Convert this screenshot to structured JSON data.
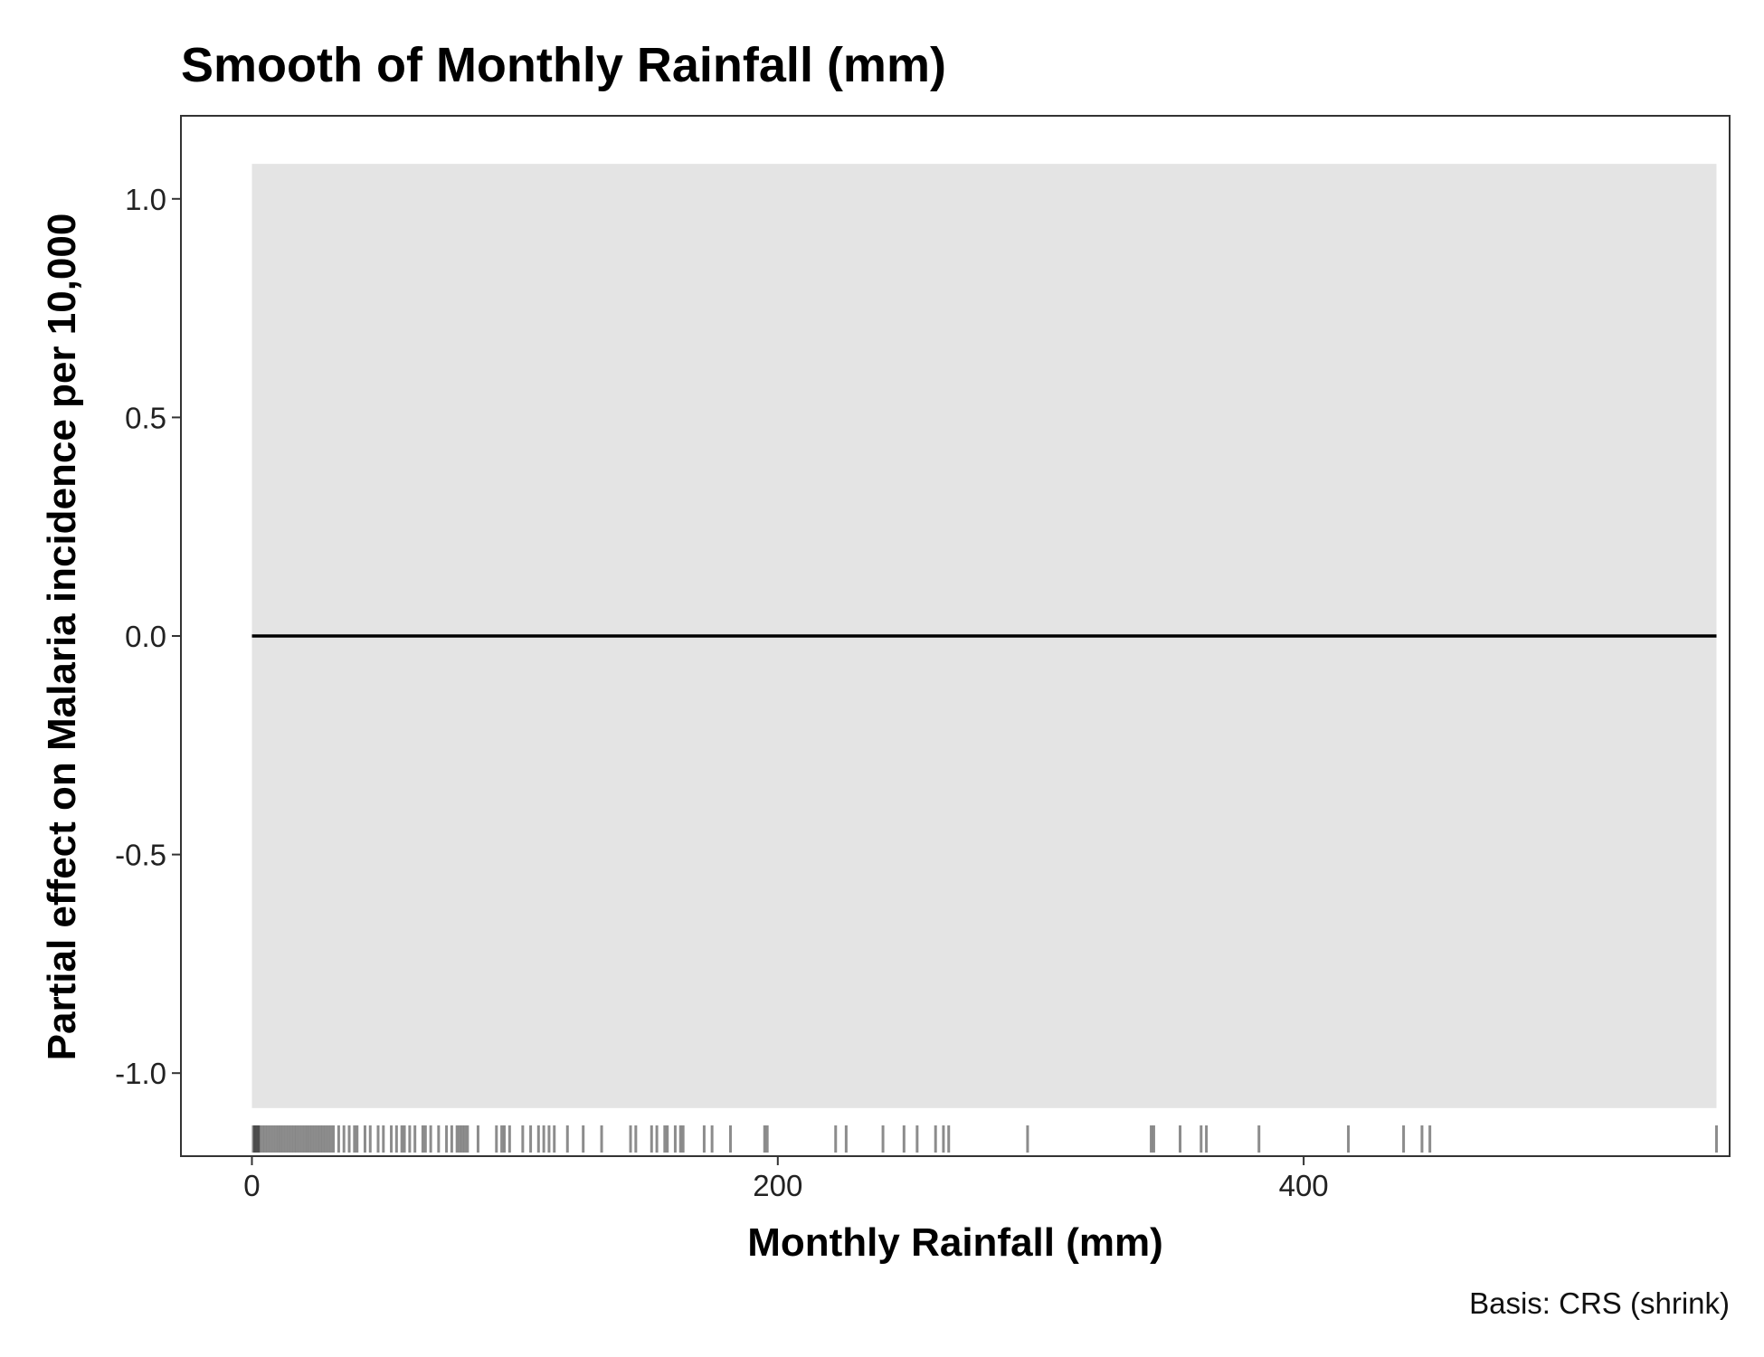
{
  "chart_data": {
    "type": "line",
    "title": "Smooth of Monthly Rainfall (mm)",
    "xlabel": "Monthly Rainfall (mm)",
    "ylabel": "Partial effect on Malaria incidence per 10,000",
    "caption": "Basis: CRS (shrink)",
    "xlim": [
      -27,
      562
    ],
    "ylim": [
      -1.19,
      1.19
    ],
    "x_ticks": [
      0,
      200,
      400
    ],
    "x_tick_labels": [
      "0",
      "200",
      "400"
    ],
    "y_ticks": [
      1.0,
      0.5,
      0.0,
      -0.5,
      -1.0
    ],
    "y_tick_labels": [
      "1.0",
      "0.5",
      "0.0",
      "-0.5",
      "-1.0"
    ],
    "grid": false,
    "series": [
      {
        "x": [
          0,
          557
        ],
        "y": [
          0,
          0
        ]
      }
    ],
    "confidence_band": {
      "x": [
        0,
        557
      ],
      "lower": [
        -1.08,
        -1.08
      ],
      "upper": [
        1.08,
        1.08
      ],
      "color": "#e4e4e4"
    },
    "rug": [
      0.5,
      1,
      1.5,
      2,
      2.5,
      3,
      4,
      5,
      6,
      7,
      8,
      9,
      10,
      11,
      12,
      13,
      14,
      15,
      16,
      17,
      18,
      19,
      20,
      21,
      22,
      23,
      24,
      25,
      26,
      27,
      28,
      29,
      30,
      31,
      33,
      35,
      37,
      39,
      40,
      43,
      45,
      48,
      50,
      53,
      55,
      57,
      58,
      60,
      62,
      65,
      66,
      68,
      71,
      74,
      76,
      78,
      79,
      80,
      81,
      82,
      86,
      93,
      95,
      96,
      98,
      103,
      106,
      109,
      111,
      113,
      115,
      120,
      126,
      133,
      144,
      146,
      152,
      154,
      157,
      158,
      161,
      163,
      164,
      172,
      175,
      182,
      195,
      196,
      222,
      226,
      240,
      248,
      253,
      260,
      263,
      265,
      295,
      342,
      343,
      353,
      361,
      363,
      383,
      417,
      438,
      445,
      448,
      557
    ],
    "colors": {
      "line": "#000000",
      "band": "#e4e4e4",
      "rug": "#000000",
      "frame": "#333333"
    }
  }
}
